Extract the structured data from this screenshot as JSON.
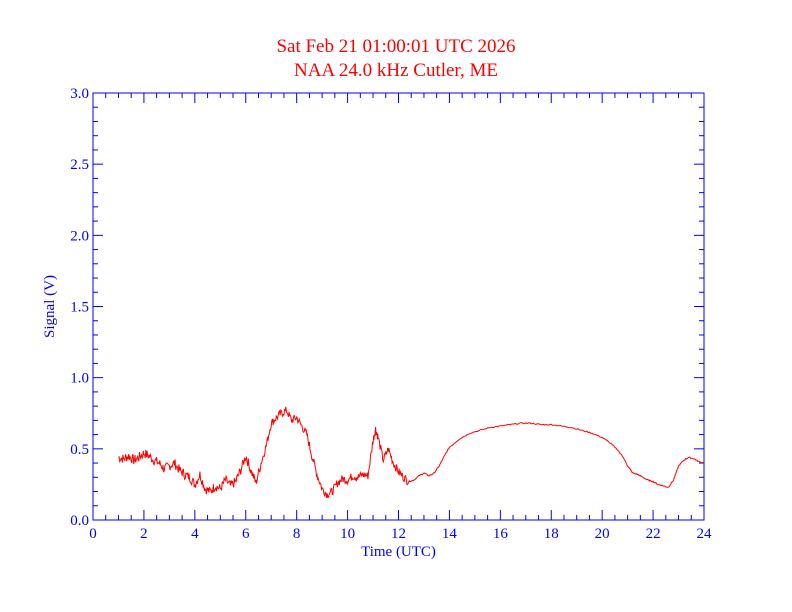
{
  "chart_data": {
    "type": "line",
    "title": "Sat Feb 21 01:00:01 UTC 2026",
    "subtitle": "NAA 24.0 kHz Cutler, ME",
    "xlabel": "Time (UTC)",
    "ylabel": "Signal (V)",
    "xlim": [
      0,
      24
    ],
    "ylim": [
      0.0,
      3.0
    ],
    "x_ticks": [
      0,
      2,
      4,
      6,
      8,
      10,
      12,
      14,
      16,
      18,
      20,
      22,
      24
    ],
    "y_ticks": [
      0.0,
      0.5,
      1.0,
      1.5,
      2.0,
      2.5,
      3.0
    ],
    "y_tick_labels": [
      "0.0",
      "0.5",
      "1.0",
      "1.5",
      "2.0",
      "2.5",
      "3.0"
    ],
    "grid": false,
    "legend": "none",
    "colors": {
      "axes": "#0000ff",
      "series": "#ff0000",
      "title": "#ff0000"
    },
    "series": [
      {
        "name": "",
        "x": [
          1.0,
          1.2,
          1.4,
          1.6,
          1.8,
          2.0,
          2.2,
          2.4,
          2.6,
          2.8,
          3.0,
          3.2,
          3.4,
          3.6,
          3.8,
          4.0,
          4.2,
          4.4,
          4.6,
          4.8,
          5.0,
          5.2,
          5.4,
          5.6,
          5.8,
          6.0,
          6.2,
          6.4,
          6.6,
          6.8,
          7.0,
          7.2,
          7.4,
          7.6,
          7.8,
          8.0,
          8.2,
          8.4,
          8.6,
          8.8,
          9.0,
          9.2,
          9.4,
          9.6,
          9.8,
          10.0,
          10.2,
          10.4,
          10.6,
          10.8,
          11.0,
          11.1,
          11.2,
          11.4,
          11.6,
          11.8,
          12.0,
          12.2,
          12.4,
          12.6,
          12.8,
          13.0,
          13.2,
          13.4,
          13.6,
          13.8,
          14.0,
          14.4,
          14.8,
          15.2,
          15.6,
          16.0,
          16.4,
          16.8,
          17.2,
          17.6,
          18.0,
          18.4,
          18.8,
          19.2,
          19.6,
          20.0,
          20.4,
          20.8,
          21.0,
          21.2,
          21.4,
          21.6,
          21.8,
          22.0,
          22.2,
          22.4,
          22.6,
          22.8,
          23.0,
          23.2,
          23.4,
          23.6,
          23.8,
          24.0
        ],
        "y": [
          0.44,
          0.43,
          0.45,
          0.42,
          0.44,
          0.47,
          0.45,
          0.42,
          0.4,
          0.36,
          0.38,
          0.4,
          0.35,
          0.32,
          0.3,
          0.25,
          0.32,
          0.22,
          0.2,
          0.24,
          0.22,
          0.28,
          0.24,
          0.27,
          0.35,
          0.45,
          0.35,
          0.26,
          0.4,
          0.52,
          0.68,
          0.72,
          0.75,
          0.77,
          0.7,
          0.72,
          0.66,
          0.6,
          0.45,
          0.32,
          0.22,
          0.18,
          0.2,
          0.26,
          0.29,
          0.28,
          0.31,
          0.3,
          0.32,
          0.31,
          0.56,
          0.64,
          0.58,
          0.42,
          0.5,
          0.4,
          0.34,
          0.3,
          0.27,
          0.28,
          0.31,
          0.33,
          0.31,
          0.33,
          0.38,
          0.45,
          0.51,
          0.57,
          0.61,
          0.63,
          0.65,
          0.66,
          0.67,
          0.68,
          0.68,
          0.67,
          0.67,
          0.66,
          0.65,
          0.63,
          0.61,
          0.58,
          0.53,
          0.45,
          0.38,
          0.33,
          0.32,
          0.3,
          0.28,
          0.27,
          0.25,
          0.24,
          0.23,
          0.28,
          0.38,
          0.42,
          0.44,
          0.43,
          0.41,
          0.4
        ]
      }
    ]
  }
}
